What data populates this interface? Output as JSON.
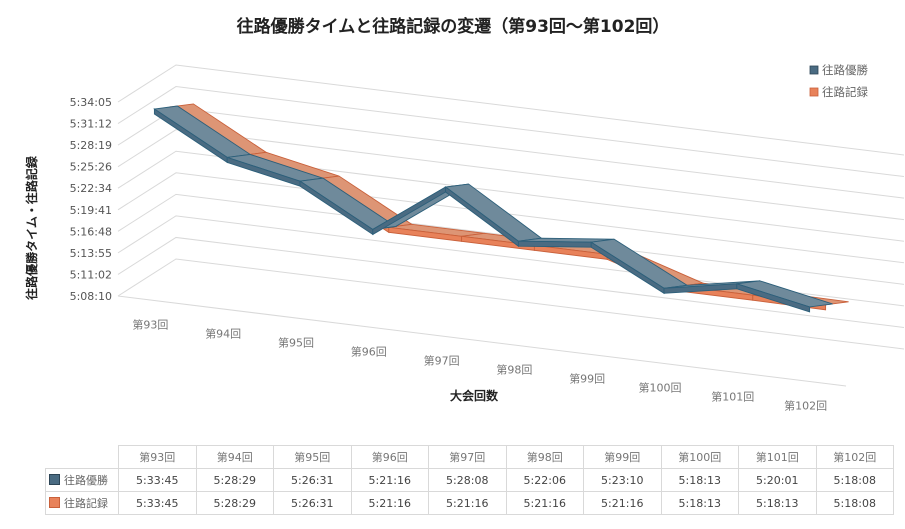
{
  "chart_data": {
    "type": "line",
    "subtype": "3d-ribbon",
    "title": "往路優勝タイムと往路記録の変遷（第93回〜第102回）",
    "xlabel": "大会回数",
    "ylabel": "往路優勝タイム・往路記録",
    "categories": [
      "第93回",
      "第94回",
      "第95回",
      "第96回",
      "第97回",
      "第98回",
      "第99回",
      "第100回",
      "第101回",
      "第102回"
    ],
    "y_ticks": [
      "5:08:10",
      "5:11:02",
      "5:13:55",
      "5:16:48",
      "5:19:41",
      "5:22:34",
      "5:25:26",
      "5:28:19",
      "5:31:12",
      "5:34:05"
    ],
    "ylim_seconds": [
      18490,
      20045
    ],
    "grid": true,
    "legend_position": "right",
    "series": [
      {
        "name": "往路優勝",
        "color": "#4a6b82",
        "labels": [
          "5:33:45",
          "5:28:29",
          "5:26:31",
          "5:21:16",
          "5:28:08",
          "5:22:06",
          "5:23:10",
          "5:18:13",
          "5:20:01",
          "5:18:08"
        ],
        "values_seconds": [
          20025,
          19709,
          19591,
          19276,
          19688,
          19326,
          19390,
          19093,
          19201,
          19088
        ]
      },
      {
        "name": "往路記録",
        "color": "#e8825a",
        "labels": [
          "5:33:45",
          "5:28:29",
          "5:26:31",
          "5:21:16",
          "5:21:16",
          "5:21:16",
          "5:21:16",
          "5:18:13",
          "5:18:13",
          "5:18:08"
        ],
        "values_seconds": [
          20025,
          19709,
          19591,
          19276,
          19276,
          19276,
          19276,
          19093,
          19093,
          19088
        ]
      }
    ]
  }
}
